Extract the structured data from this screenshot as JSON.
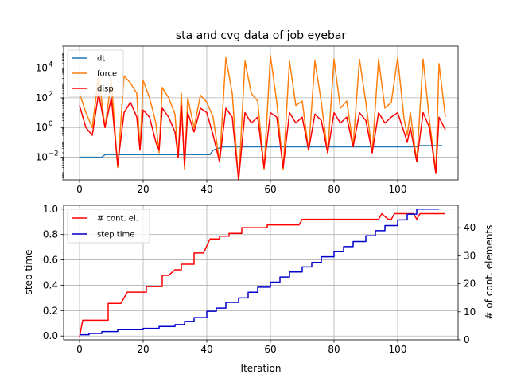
{
  "chart_data": [
    {
      "type": "line",
      "title": "sta and cvg data of job eyebar",
      "xlabel": "",
      "ylabel": "",
      "yscale": "log",
      "xlim": [
        -5,
        119
      ],
      "ylim": [
        0.0003,
        300000
      ],
      "xticks": [
        0,
        20,
        40,
        60,
        80,
        100
      ],
      "yticks": [
        {
          "value": 0.01,
          "base": "10",
          "exp": "−2"
        },
        {
          "value": 1,
          "base": "10",
          "exp": "0"
        },
        {
          "value": 100,
          "base": "10",
          "exp": "2"
        },
        {
          "value": 10000,
          "base": "10",
          "exp": "4"
        }
      ],
      "grid": true,
      "legend": "top-left",
      "series": [
        {
          "name": "dt",
          "color": "#1f77b4",
          "points": [
            [
              0,
              0.01
            ],
            [
              5,
              0.01
            ],
            [
              7,
              0.01
            ],
            [
              8,
              0.015
            ],
            [
              41,
              0.015
            ],
            [
              42,
              0.03
            ],
            [
              45,
              0.05
            ],
            [
              106,
              0.05
            ],
            [
              107,
              0.06
            ],
            [
              114,
              0.06
            ]
          ]
        },
        {
          "name": "force",
          "color": "#ff7f0e",
          "points": [
            [
              0,
              200
            ],
            [
              2,
              10
            ],
            [
              4,
              1
            ],
            [
              6,
              3000
            ],
            [
              8,
              1
            ],
            [
              10,
              1500
            ],
            [
              12,
              0.002
            ],
            [
              14,
              3000
            ],
            [
              16,
              1000
            ],
            [
              18,
              200
            ],
            [
              19,
              0.03
            ],
            [
              20,
              1500
            ],
            [
              22,
              100
            ],
            [
              24,
              2
            ],
            [
              25,
              0.02
            ],
            [
              26,
              500
            ],
            [
              28,
              100
            ],
            [
              30,
              8
            ],
            [
              31,
              0.01
            ],
            [
              32,
              200
            ],
            [
              33,
              0.0015
            ],
            [
              34,
              100
            ],
            [
              36,
              1
            ],
            [
              38,
              150
            ],
            [
              40,
              50
            ],
            [
              42,
              5
            ],
            [
              44,
              0.005
            ],
            [
              46,
              50000
            ],
            [
              48,
              200
            ],
            [
              50,
              0.0002
            ],
            [
              52,
              30000
            ],
            [
              54,
              200
            ],
            [
              56,
              60
            ],
            [
              58,
              0.0015
            ],
            [
              60,
              70000
            ],
            [
              62,
              50
            ],
            [
              64,
              0.0015
            ],
            [
              66,
              30000
            ],
            [
              68,
              30
            ],
            [
              70,
              60
            ],
            [
              72,
              0.03
            ],
            [
              74,
              30000
            ],
            [
              76,
              50
            ],
            [
              78,
              0.02
            ],
            [
              80,
              40000
            ],
            [
              82,
              20
            ],
            [
              84,
              60
            ],
            [
              86,
              0.06
            ],
            [
              88,
              40000
            ],
            [
              90,
              50
            ],
            [
              92,
              0.02
            ],
            [
              94,
              40000
            ],
            [
              96,
              20
            ],
            [
              98,
              50
            ],
            [
              100,
              50000
            ],
            [
              102,
              4
            ],
            [
              103,
              0.3
            ],
            [
              104,
              10
            ],
            [
              106,
              0.005
            ],
            [
              108,
              40000
            ],
            [
              110,
              3
            ],
            [
              112,
              0.001
            ],
            [
              113,
              20000
            ],
            [
              115,
              5
            ]
          ]
        },
        {
          "name": "disp",
          "color": "#ff0000",
          "points": [
            [
              0,
              30
            ],
            [
              2,
              1
            ],
            [
              4,
              0.3
            ],
            [
              6,
              200
            ],
            [
              8,
              1
            ],
            [
              10,
              100
            ],
            [
              12,
              0.003
            ],
            [
              14,
              10
            ],
            [
              16,
              50
            ],
            [
              18,
              5
            ],
            [
              19,
              0.03
            ],
            [
              20,
              15
            ],
            [
              22,
              5
            ],
            [
              24,
              0.1
            ],
            [
              25,
              0.03
            ],
            [
              26,
              20
            ],
            [
              28,
              5
            ],
            [
              30,
              0.5
            ],
            [
              31,
              0.01
            ],
            [
              32,
              30
            ],
            [
              33,
              0.003
            ],
            [
              34,
              10
            ],
            [
              36,
              0.5
            ],
            [
              38,
              20
            ],
            [
              40,
              10
            ],
            [
              42,
              0.3
            ],
            [
              44,
              0.005
            ],
            [
              46,
              20
            ],
            [
              48,
              5
            ],
            [
              50,
              0.0003
            ],
            [
              52,
              10
            ],
            [
              54,
              2
            ],
            [
              56,
              5
            ],
            [
              58,
              0.002
            ],
            [
              60,
              10
            ],
            [
              62,
              5
            ],
            [
              64,
              0.002
            ],
            [
              66,
              10
            ],
            [
              68,
              2
            ],
            [
              70,
              5
            ],
            [
              72,
              0.03
            ],
            [
              74,
              8
            ],
            [
              76,
              3
            ],
            [
              78,
              0.02
            ],
            [
              80,
              10
            ],
            [
              82,
              2
            ],
            [
              84,
              5
            ],
            [
              86,
              0.05
            ],
            [
              88,
              10
            ],
            [
              90,
              3
            ],
            [
              92,
              0.02
            ],
            [
              94,
              10
            ],
            [
              96,
              2
            ],
            [
              98,
              5
            ],
            [
              100,
              10
            ],
            [
              102,
              0.5
            ],
            [
              103,
              0.1
            ],
            [
              104,
              1
            ],
            [
              106,
              0.005
            ],
            [
              108,
              10
            ],
            [
              110,
              1
            ],
            [
              112,
              0.0008
            ],
            [
              113,
              5
            ],
            [
              115,
              0.7
            ]
          ]
        }
      ]
    },
    {
      "type": "line",
      "title": "",
      "xlabel": "Iteration",
      "ylabel": "step time",
      "y2label": "# of cont. elements",
      "xlim": [
        -5,
        119
      ],
      "ylim": [
        -0.03,
        1.03
      ],
      "y2lim": [
        0,
        48
      ],
      "xticks": [
        0,
        20,
        40,
        60,
        80,
        100
      ],
      "yticks": [
        "0.0",
        "0.2",
        "0.4",
        "0.6",
        "0.8",
        "1.0"
      ],
      "y2ticks": [
        "0",
        "10",
        "20",
        "30",
        "40"
      ],
      "grid": true,
      "legend": "top-left",
      "series": [
        {
          "name": "# cont. el.",
          "color": "#ff0000",
          "axis": "right",
          "points": [
            [
              0,
              1
            ],
            [
              1,
              7
            ],
            [
              9,
              7
            ],
            [
              9,
              13
            ],
            [
              13,
              13
            ],
            [
              15,
              17
            ],
            [
              21,
              17
            ],
            [
              21,
              19
            ],
            [
              26,
              19
            ],
            [
              26,
              23
            ],
            [
              28,
              23
            ],
            [
              30,
              25
            ],
            [
              32,
              25
            ],
            [
              32,
              27
            ],
            [
              36,
              27
            ],
            [
              36,
              31
            ],
            [
              38,
              31
            ],
            [
              39,
              31
            ],
            [
              41,
              36
            ],
            [
              44,
              36
            ],
            [
              44,
              37
            ],
            [
              47,
              37
            ],
            [
              47,
              38
            ],
            [
              51,
              38
            ],
            [
              51,
              40
            ],
            [
              59,
              40
            ],
            [
              59,
              41
            ],
            [
              69,
              41
            ],
            [
              70,
              43
            ],
            [
              94,
              43
            ],
            [
              95,
              45
            ],
            [
              97,
              43
            ],
            [
              98,
              43
            ],
            [
              99,
              45
            ],
            [
              105,
              45
            ],
            [
              106,
              43
            ],
            [
              107,
              45
            ],
            [
              115,
              45
            ]
          ]
        },
        {
          "name": "step time",
          "color": "#0000cc",
          "axis": "left",
          "points": [
            [
              0,
              0.01
            ],
            [
              3,
              0.01
            ],
            [
              3,
              0.02
            ],
            [
              7,
              0.02
            ],
            [
              7,
              0.035
            ],
            [
              12,
              0.035
            ],
            [
              12,
              0.05
            ],
            [
              20,
              0.05
            ],
            [
              20,
              0.06
            ],
            [
              25,
              0.06
            ],
            [
              25,
              0.075
            ],
            [
              30,
              0.075
            ],
            [
              30,
              0.09
            ],
            [
              33,
              0.09
            ],
            [
              33,
              0.115
            ],
            [
              36,
              0.115
            ],
            [
              36,
              0.145
            ],
            [
              40,
              0.145
            ],
            [
              40,
              0.195
            ],
            [
              43,
              0.195
            ],
            [
              43,
              0.22
            ],
            [
              46,
              0.22
            ],
            [
              46,
              0.265
            ],
            [
              50,
              0.265
            ],
            [
              50,
              0.3
            ],
            [
              53,
              0.3
            ],
            [
              53,
              0.345
            ],
            [
              56,
              0.345
            ],
            [
              56,
              0.385
            ],
            [
              60,
              0.385
            ],
            [
              60,
              0.425
            ],
            [
              63,
              0.425
            ],
            [
              63,
              0.465
            ],
            [
              66,
              0.465
            ],
            [
              66,
              0.505
            ],
            [
              70,
              0.505
            ],
            [
              70,
              0.545
            ],
            [
              73,
              0.545
            ],
            [
              73,
              0.58
            ],
            [
              76,
              0.58
            ],
            [
              76,
              0.625
            ],
            [
              80,
              0.625
            ],
            [
              80,
              0.665
            ],
            [
              83,
              0.665
            ],
            [
              83,
              0.705
            ],
            [
              86,
              0.705
            ],
            [
              86,
              0.745
            ],
            [
              90,
              0.745
            ],
            [
              90,
              0.79
            ],
            [
              93,
              0.79
            ],
            [
              93,
              0.83
            ],
            [
              96,
              0.83
            ],
            [
              96,
              0.87
            ],
            [
              100,
              0.87
            ],
            [
              100,
              0.915
            ],
            [
              103,
              0.915
            ],
            [
              103,
              0.96
            ],
            [
              106,
              0.96
            ],
            [
              106,
              1.0
            ],
            [
              113,
              1.0
            ]
          ]
        }
      ]
    }
  ]
}
